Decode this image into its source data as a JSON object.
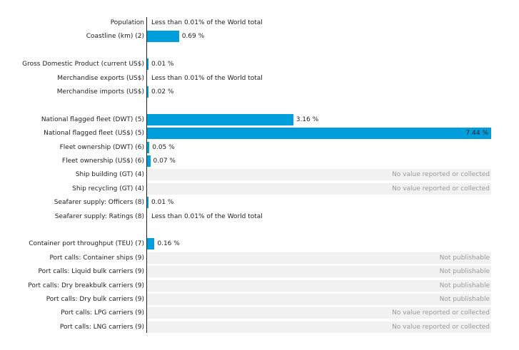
{
  "chart_data": {
    "type": "bar",
    "orientation": "horizontal",
    "unit": "%",
    "xlim": [
      0,
      7.44
    ],
    "rows": [
      {
        "label": "Population",
        "value": null,
        "text": "Less than 0.01% of the World total",
        "kind": "plain"
      },
      {
        "label": "Coastline (km) (2)",
        "value": 0.69,
        "text": "0.69 %",
        "kind": "bar"
      },
      {
        "label": "",
        "kind": "gap"
      },
      {
        "label": "Gross Domestic Product (current US$)",
        "value": 0.01,
        "text": "0.01 %",
        "kind": "bar"
      },
      {
        "label": "Merchandise exports (US$)",
        "value": null,
        "text": "Less than 0.01% of the World total",
        "kind": "plain"
      },
      {
        "label": "Merchandise imports (US$)",
        "value": 0.02,
        "text": "0.02 %",
        "kind": "bar"
      },
      {
        "label": "",
        "kind": "gap"
      },
      {
        "label": "National flagged fleet (DWT) (5)",
        "value": 3.16,
        "text": "3.16 %",
        "kind": "bar"
      },
      {
        "label": "National flagged fleet (US$) (5)",
        "value": 7.44,
        "text": "7.44 %",
        "kind": "bar",
        "highlight": true
      },
      {
        "label": "Fleet ownership (DWT) (6)",
        "value": 0.05,
        "text": "0.05 %",
        "kind": "bar"
      },
      {
        "label": "Fleet ownership (US$) (6)",
        "value": 0.07,
        "text": "0.07 %",
        "kind": "bar"
      },
      {
        "label": "Ship building (GT) (4)",
        "value": null,
        "text": "No value reported or collected",
        "kind": "note"
      },
      {
        "label": "Ship recycling (GT) (4)",
        "value": null,
        "text": "No value reported or collected",
        "kind": "note"
      },
      {
        "label": "Seafarer supply: Officers (8)",
        "value": 0.01,
        "text": "0.01 %",
        "kind": "bar"
      },
      {
        "label": "Seafarer supply: Ratings (8)",
        "value": null,
        "text": "Less than 0.01% of the World total",
        "kind": "plain"
      },
      {
        "label": "",
        "kind": "gap"
      },
      {
        "label": "Container port throughput (TEU) (7)",
        "value": 0.16,
        "text": "0.16 %",
        "kind": "bar"
      },
      {
        "label": "Port calls: Container ships (9)",
        "value": null,
        "text": "Not publishable",
        "kind": "note"
      },
      {
        "label": "Port calls: Liquid bulk carriers (9)",
        "value": null,
        "text": "Not publishable",
        "kind": "note"
      },
      {
        "label": "Port calls: Dry breakbulk carriers (9)",
        "value": null,
        "text": "Not publishable",
        "kind": "note"
      },
      {
        "label": "Port calls: Dry bulk carriers (9)",
        "value": null,
        "text": "Not publishable",
        "kind": "note"
      },
      {
        "label": "Port calls: LPG carriers (9)",
        "value": null,
        "text": "No value reported or collected",
        "kind": "note"
      },
      {
        "label": "Port calls: LNG carriers (9)",
        "value": null,
        "text": "No value reported or collected",
        "kind": "note"
      }
    ],
    "colors": {
      "bar": "#009edb",
      "background": "#f1f1f1",
      "note": "#999999"
    }
  }
}
